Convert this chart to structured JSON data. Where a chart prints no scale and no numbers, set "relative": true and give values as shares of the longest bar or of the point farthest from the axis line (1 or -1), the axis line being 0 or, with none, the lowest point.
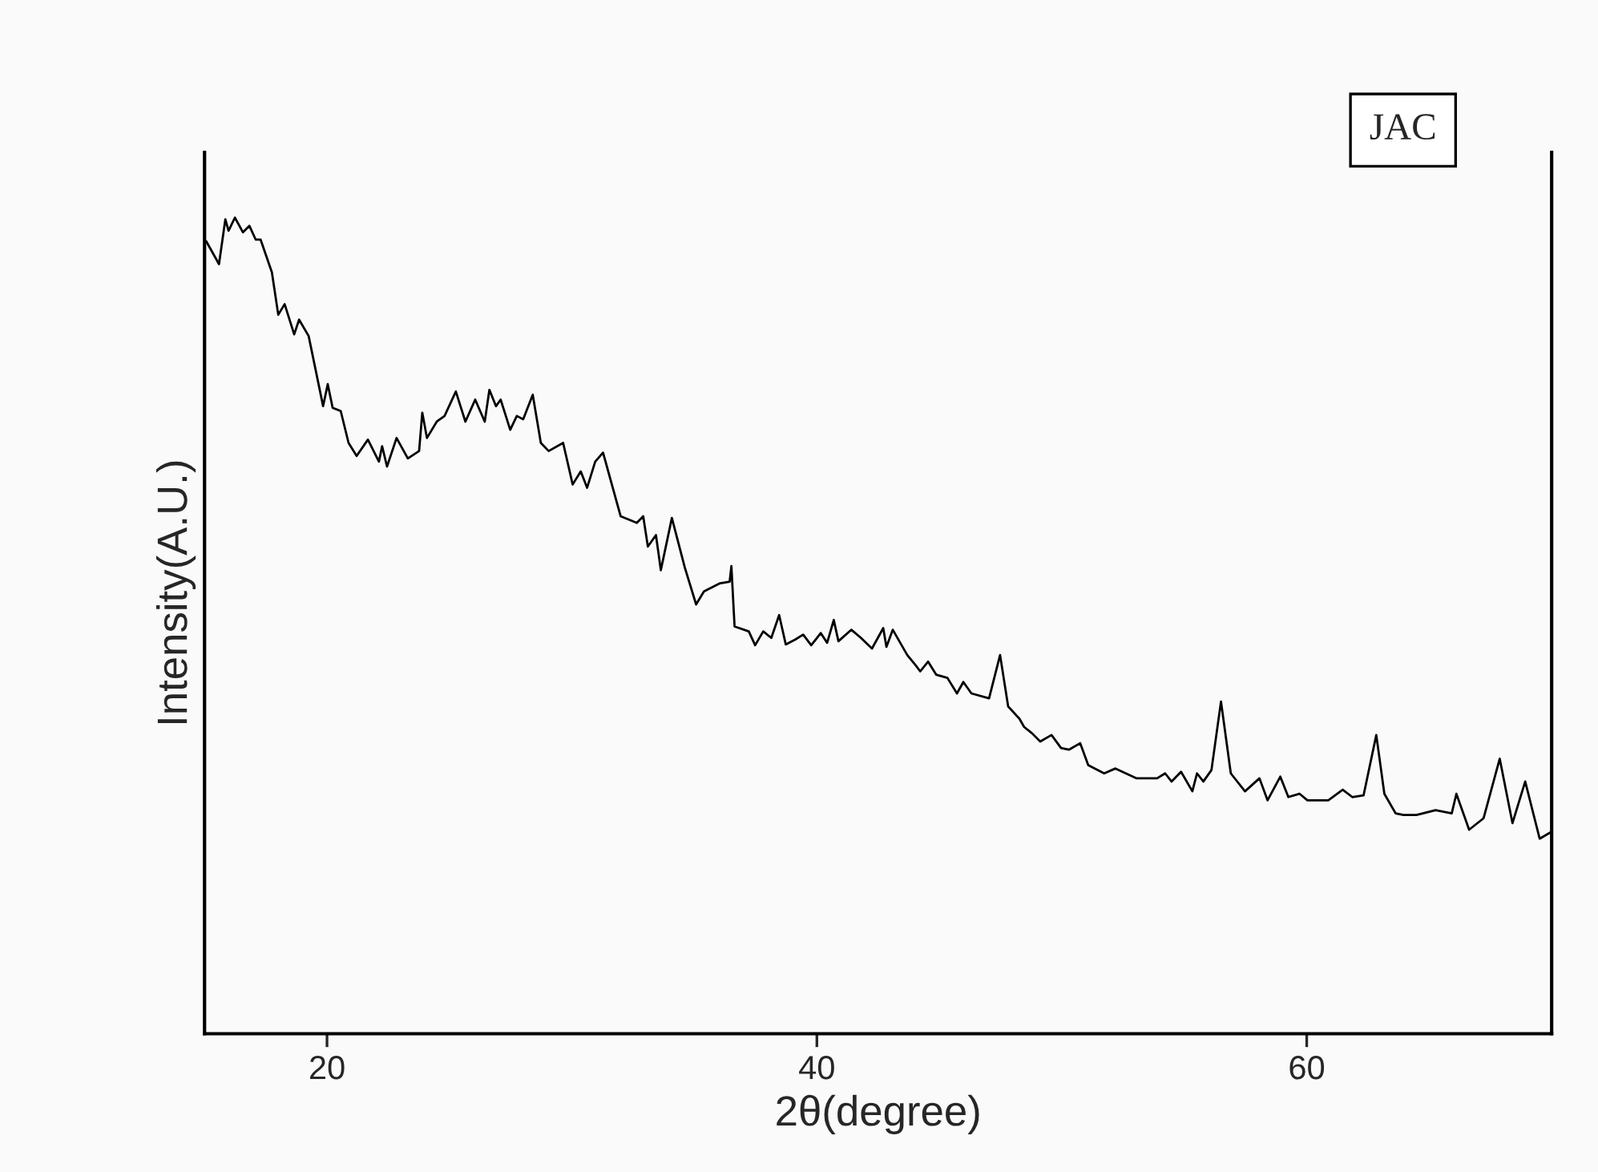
{
  "chart_data": {
    "type": "line",
    "relative": true,
    "xlabel": "2θ(degree)",
    "ylabel": "Intensity(A.U.)",
    "annotations": [
      "JAC"
    ],
    "xlim": [
      15,
      70
    ],
    "xticks": [
      20,
      40,
      60
    ],
    "grid": false,
    "marker": "none",
    "line_style": "solid",
    "series": [
      {
        "color": "#000000",
        "x": [
          15.07,
          15.59,
          15.85,
          15.98,
          16.24,
          16.57,
          16.83,
          17.09,
          17.29,
          17.75,
          18.01,
          18.27,
          18.66,
          18.86,
          19.25,
          19.84,
          20.03,
          20.23,
          20.56,
          20.88,
          21.21,
          21.67,
          22.12,
          22.25,
          22.45,
          22.84,
          23.3,
          23.76,
          23.89,
          24.08,
          24.48,
          24.8,
          25.26,
          25.65,
          26.05,
          26.44,
          26.63,
          26.9,
          27.09,
          27.48,
          27.75,
          28.01,
          28.4,
          28.73,
          29.05,
          29.64,
          30.03,
          30.36,
          30.62,
          30.95,
          31.27,
          31.99,
          32.65,
          32.91,
          33.1,
          33.43,
          33.63,
          34.08,
          34.61,
          35.07,
          35.39,
          36.05,
          36.44,
          36.51,
          36.64,
          37.22,
          37.48,
          37.81,
          38.14,
          38.46,
          38.73,
          39.12,
          39.44,
          39.77,
          40.16,
          40.42,
          40.69,
          40.88,
          41.41,
          41.8,
          42.25,
          42.71,
          42.84,
          43.1,
          43.69,
          44.02,
          44.22,
          44.54,
          44.87,
          45.33,
          45.72,
          45.98,
          46.31,
          47.03,
          47.48,
          47.81,
          48.27,
          48.46,
          48.79,
          49.12,
          49.58,
          49.97,
          50.29,
          50.75,
          51.08,
          51.73,
          52.19,
          53.04,
          53.89,
          54.22,
          54.48,
          54.87,
          55.33,
          55.52,
          55.78,
          56.11,
          56.5,
          56.9,
          57.48,
          58.07,
          58.4,
          58.92,
          59.25,
          59.71,
          60.03,
          60.88,
          61.47,
          61.86,
          62.32,
          62.84,
          63.17,
          63.63,
          63.95,
          64.48,
          65.26,
          65.92,
          66.11,
          66.63,
          67.22,
          67.88,
          68.4,
          68.92,
          69.51,
          69.97
        ],
        "values": [
          0.971,
          0.943,
          0.998,
          0.984,
          1.0,
          0.982,
          0.99,
          0.973,
          0.973,
          0.933,
          0.881,
          0.894,
          0.857,
          0.875,
          0.855,
          0.769,
          0.796,
          0.767,
          0.763,
          0.724,
          0.708,
          0.728,
          0.701,
          0.72,
          0.695,
          0.73,
          0.705,
          0.714,
          0.761,
          0.73,
          0.75,
          0.757,
          0.787,
          0.75,
          0.777,
          0.75,
          0.789,
          0.769,
          0.777,
          0.74,
          0.757,
          0.753,
          0.783,
          0.724,
          0.714,
          0.724,
          0.673,
          0.689,
          0.669,
          0.701,
          0.712,
          0.634,
          0.626,
          0.634,
          0.597,
          0.611,
          0.568,
          0.632,
          0.571,
          0.526,
          0.542,
          0.552,
          0.554,
          0.573,
          0.499,
          0.493,
          0.476,
          0.493,
          0.485,
          0.513,
          0.477,
          0.483,
          0.489,
          0.476,
          0.491,
          0.479,
          0.507,
          0.481,
          0.495,
          0.485,
          0.472,
          0.497,
          0.474,
          0.495,
          0.464,
          0.452,
          0.444,
          0.456,
          0.44,
          0.436,
          0.417,
          0.431,
          0.417,
          0.411,
          0.464,
          0.401,
          0.386,
          0.376,
          0.368,
          0.358,
          0.366,
          0.35,
          0.348,
          0.356,
          0.329,
          0.319,
          0.325,
          0.313,
          0.313,
          0.319,
          0.309,
          0.321,
          0.297,
          0.319,
          0.309,
          0.323,
          0.407,
          0.319,
          0.297,
          0.313,
          0.286,
          0.315,
          0.29,
          0.294,
          0.286,
          0.286,
          0.299,
          0.29,
          0.292,
          0.366,
          0.294,
          0.27,
          0.268,
          0.268,
          0.274,
          0.27,
          0.294,
          0.25,
          0.264,
          0.337,
          0.258,
          0.309,
          0.239,
          0.247
        ]
      }
    ]
  }
}
